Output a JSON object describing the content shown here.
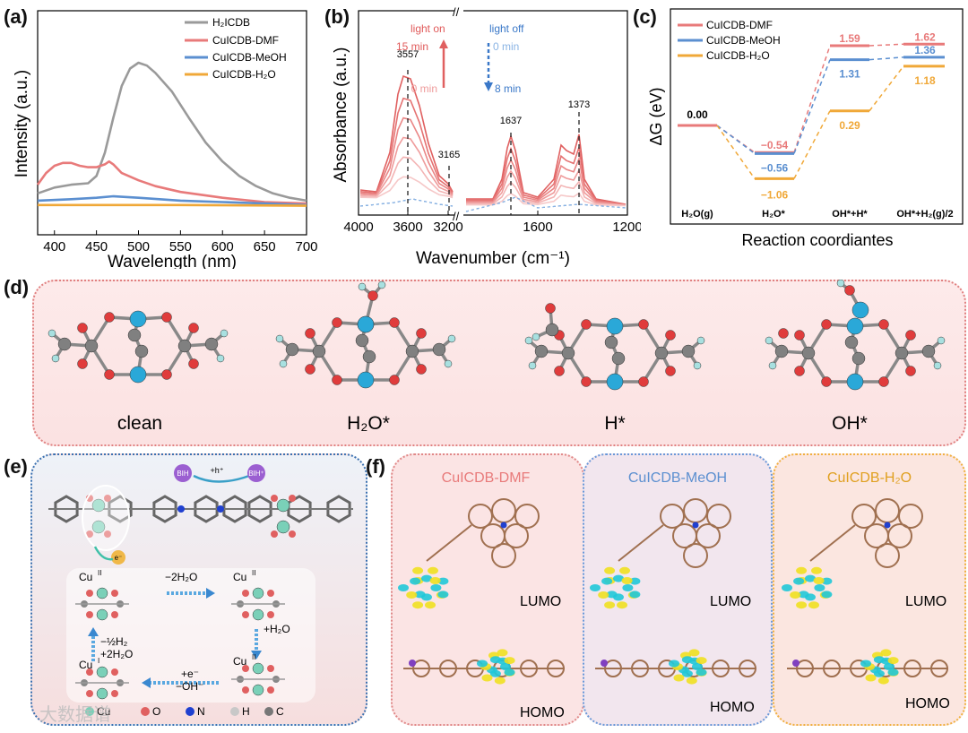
{
  "panels": {
    "a": "(a)",
    "b": "(b)",
    "c": "(c)",
    "d": "(d)",
    "e": "(e)",
    "f": "(f)"
  },
  "panel_a": {
    "legend": [
      "H₂ICDB",
      "CuICDB-DMF",
      "CuICDB-MeOH",
      "CuICDB-H₂O"
    ],
    "colors": [
      "#9a9a9a",
      "#e87a7a",
      "#5b8fd0",
      "#f0a838"
    ]
  },
  "panel_b": {
    "light_on": "light on",
    "light_off": "light off",
    "t15": "15 min",
    "t0a": "0 min",
    "t0b": "0 min",
    "t8": "8 min",
    "peaks": [
      "3557",
      "3165",
      "1637",
      "1373"
    ]
  },
  "panel_c": {
    "legend": [
      "CuICDB-DMF",
      "CuICDB-MeOH",
      "CuICDB-H₂O"
    ],
    "colors": [
      "#e87a7a",
      "#5b8fd0",
      "#f0a838"
    ],
    "states": [
      "H₂O(g)",
      "H₂O*",
      "OH*+H*",
      "OH*+H₂(g)/2"
    ],
    "values_text": {
      "start": "0.00",
      "dmf": [
        "−0.54",
        "1.59",
        "1.62"
      ],
      "meoh": [
        "−0.56",
        "1.31",
        "1.36"
      ],
      "h2o": [
        "−1.06",
        "0.29",
        "1.18"
      ]
    }
  },
  "chart_data": [
    {
      "type": "line",
      "title": "",
      "xlabel": "Wavelength (nm)",
      "ylabel": "Intensity (a.u.)",
      "xlim": [
        380,
        700
      ],
      "xticks": [
        "400",
        "450",
        "500",
        "550",
        "600",
        "650",
        "700"
      ],
      "series": [
        {
          "name": "H₂ICDB",
          "x": [
            380,
            400,
            420,
            440,
            450,
            460,
            470,
            480,
            490,
            500,
            510,
            520,
            540,
            560,
            580,
            600,
            620,
            640,
            660,
            680,
            700
          ],
          "y": [
            0.1,
            0.14,
            0.16,
            0.17,
            0.22,
            0.38,
            0.62,
            0.84,
            0.96,
            1.0,
            0.98,
            0.93,
            0.8,
            0.62,
            0.45,
            0.32,
            0.22,
            0.15,
            0.1,
            0.07,
            0.05
          ]
        },
        {
          "name": "CuICDB-DMF",
          "x": [
            380,
            390,
            400,
            410,
            420,
            430,
            440,
            450,
            460,
            465,
            470,
            480,
            500,
            520,
            550,
            600,
            650,
            700
          ],
          "y": [
            0.16,
            0.24,
            0.29,
            0.31,
            0.31,
            0.29,
            0.28,
            0.28,
            0.3,
            0.32,
            0.3,
            0.24,
            0.19,
            0.15,
            0.11,
            0.07,
            0.04,
            0.03
          ]
        },
        {
          "name": "CuICDB-MeOH",
          "x": [
            380,
            420,
            450,
            470,
            500,
            550,
            600,
            650,
            700
          ],
          "y": [
            0.05,
            0.06,
            0.07,
            0.08,
            0.07,
            0.05,
            0.04,
            0.03,
            0.02
          ]
        },
        {
          "name": "CuICDB-H₂O",
          "x": [
            380,
            450,
            550,
            700
          ],
          "y": [
            0.02,
            0.02,
            0.02,
            0.015
          ]
        }
      ]
    },
    {
      "type": "line",
      "title": "",
      "xlabel": "Wavenumber (cm⁻¹)",
      "ylabel": "Absorbance (a.u.)",
      "xticks": [
        "4000",
        "3600",
        "3200",
        "1600",
        "1200"
      ],
      "peaks": [
        3557,
        3165,
        1637,
        1373
      ]
    },
    {
      "type": "line",
      "title": "",
      "xlabel": "Reaction coordiantes",
      "ylabel": "ΔG (eV)",
      "categories": [
        "H₂O(g)",
        "H₂O*",
        "OH*+H*",
        "OH*+H₂(g)/2"
      ],
      "series": [
        {
          "name": "CuICDB-DMF",
          "values": [
            0.0,
            -0.54,
            1.59,
            1.62
          ]
        },
        {
          "name": "CuICDB-MeOH",
          "values": [
            0.0,
            -0.56,
            1.31,
            1.36
          ]
        },
        {
          "name": "CuICDB-H₂O",
          "values": [
            0.0,
            -1.06,
            0.29,
            1.18
          ]
        }
      ]
    }
  ],
  "panel_d": {
    "labels": [
      "clean",
      "H₂O*",
      "H*",
      "OH*"
    ]
  },
  "panel_e": {
    "bih": "BIH",
    "hplus": "+h⁺",
    "bihplus": "BIH⁺",
    "eminus": "e⁻",
    "cu_tl": "Cu",
    "cu_tl_ox": "II",
    "cu_tr": "Cu",
    "cu_tr_ox": "II",
    "cu_br": "Cu",
    "cu_br_ox": "II",
    "cu_bl": "Cu",
    "cu_bl_ox": "I",
    "step1": "−2H₂O",
    "step2": "+H₂O",
    "step3a": "+e⁻",
    "step3b": "−OH⁻",
    "step4a": "−½H₂",
    "step4b": "+2H₂O",
    "legend": [
      "Cu",
      "O",
      "N",
      "H",
      "C"
    ],
    "watermark": "大数据谱"
  },
  "panel_f": {
    "titles": [
      "CuICDB-DMF",
      "CuICDB-MeOH",
      "CuICDB-H₂O"
    ],
    "title_colors": [
      "#e87a7a",
      "#5b8fd0",
      "#e0a020"
    ],
    "lumo": "LUMO",
    "homo": "HOMO"
  }
}
